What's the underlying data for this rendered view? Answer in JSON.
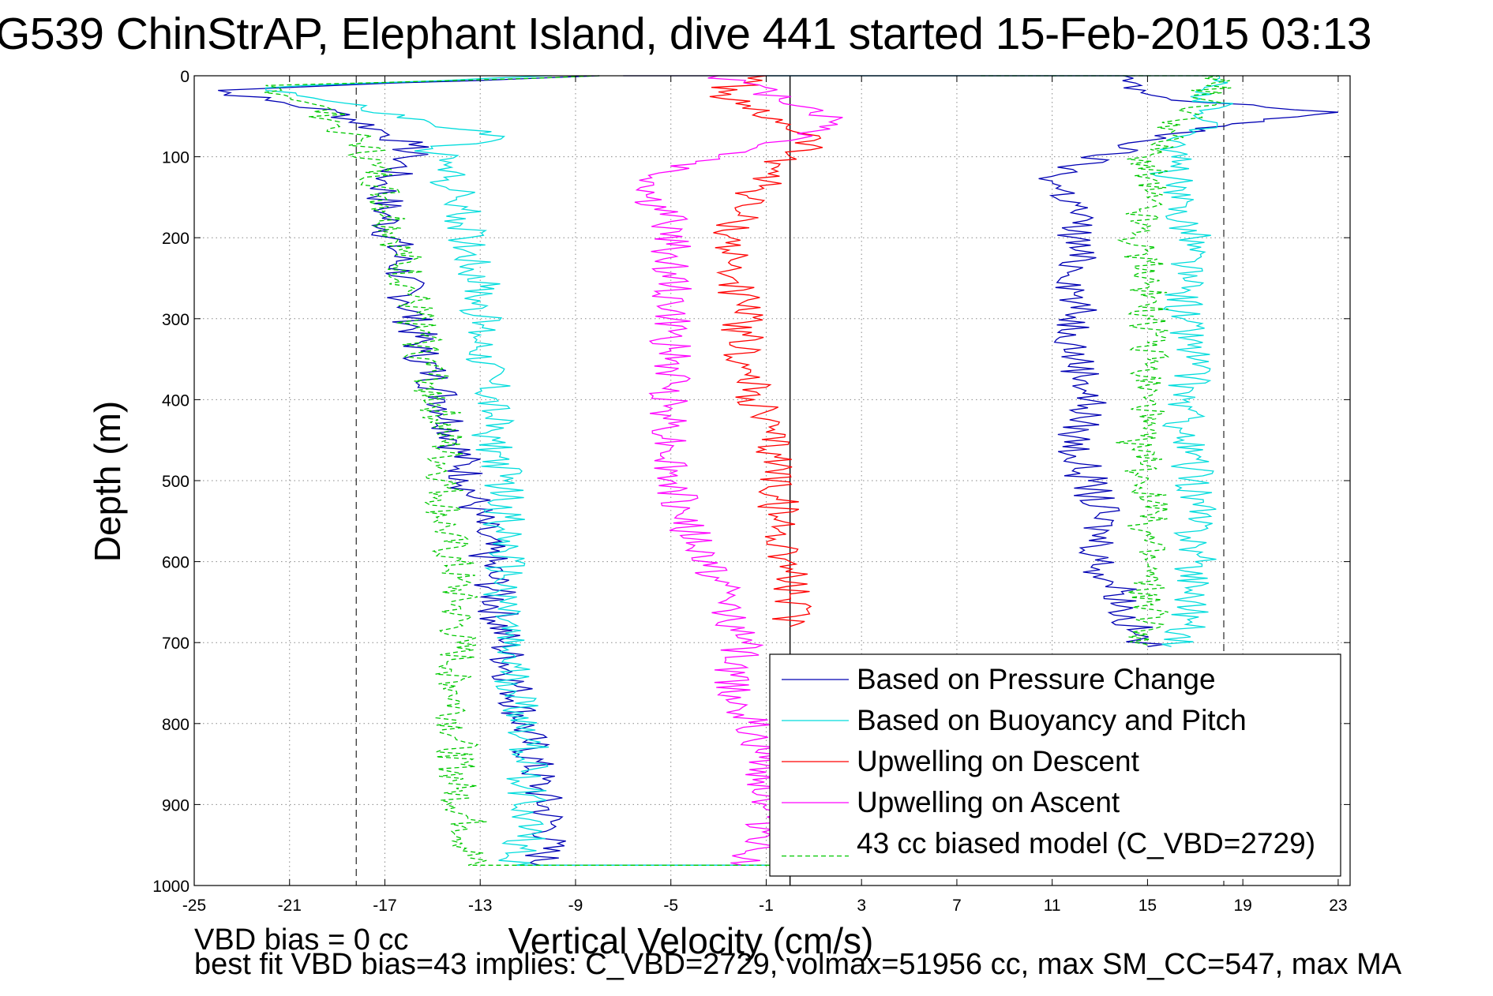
{
  "figure": {
    "title": "G539 ChinStrAP, Elephant Island, dive 441 started 15-Feb-2015 03:13",
    "footer_line1": "VBD bias = 0 cc",
    "footer_line2": "best fit VBD bias=43 implies: C_VBD=2729, volmax=51956 cc, max SM_CC=547, max MA"
  },
  "chart_data": {
    "type": "line",
    "title": "G539 ChinStrAP, Elephant Island, dive 441 started 15-Feb-2015 03:13",
    "xlabel": "Vertical Velocity (cm/s)",
    "ylabel": "Depth (m)",
    "xlim": [
      -25,
      23.5
    ],
    "ylim": [
      1000,
      0
    ],
    "y_reversed": true,
    "grid": true,
    "grid_style": "dotted",
    "x_ticks": [
      -25,
      -21,
      -17,
      -13,
      -9,
      -5,
      -1,
      3,
      7,
      11,
      15,
      19,
      23
    ],
    "y_ticks": [
      0,
      100,
      200,
      300,
      400,
      500,
      600,
      700,
      800,
      900,
      1000
    ],
    "legend_position": "bottom-right",
    "reference_lines": [
      {
        "orientation": "vertical",
        "x": -18.2,
        "style": "dashed",
        "color": "#444444"
      },
      {
        "orientation": "vertical",
        "x": 18.2,
        "style": "dashed",
        "color": "#444444"
      },
      {
        "orientation": "vertical",
        "x": 0,
        "style": "solid",
        "color": "#000000"
      }
    ],
    "series": [
      {
        "name": "Based on Pressure Change",
        "color": "#0000b4",
        "style": "solid",
        "descent": [
          [
            -8,
            0
          ],
          [
            -24,
            18
          ],
          [
            -22,
            30
          ],
          [
            -19,
            45
          ],
          [
            -17,
            70
          ],
          [
            -16,
            85
          ],
          [
            -16,
            100
          ],
          [
            -17,
            130
          ],
          [
            -17,
            170
          ],
          [
            -16.5,
            220
          ],
          [
            -16,
            280
          ],
          [
            -15.5,
            340
          ],
          [
            -15,
            370
          ],
          [
            -14.5,
            400
          ],
          [
            -14,
            450
          ],
          [
            -13.5,
            500
          ],
          [
            -13,
            560
          ],
          [
            -12.5,
            620
          ],
          [
            -12,
            700
          ],
          [
            -11.5,
            760
          ],
          [
            -11,
            820
          ],
          [
            -10.5,
            880
          ],
          [
            -10,
            930
          ],
          [
            -10.5,
            975
          ],
          [
            0,
            975
          ]
        ],
        "ascent": [
          [
            -7,
            0
          ],
          [
            14,
            0
          ],
          [
            14,
            15
          ],
          [
            16,
            30
          ],
          [
            23,
            45
          ],
          [
            17,
            65
          ],
          [
            15,
            80
          ],
          [
            12,
            110
          ],
          [
            11,
            130
          ],
          [
            12,
            160
          ],
          [
            12,
            200
          ],
          [
            12,
            240
          ],
          [
            12,
            280
          ],
          [
            12,
            320
          ],
          [
            12,
            350
          ],
          [
            12.5,
            380
          ],
          [
            12.5,
            410
          ],
          [
            12,
            440
          ],
          [
            12,
            470
          ],
          [
            12.5,
            500
          ],
          [
            13,
            540
          ],
          [
            13,
            580
          ],
          [
            13,
            610
          ],
          [
            14,
            640
          ],
          [
            14,
            660
          ],
          [
            14.5,
            690
          ],
          [
            15,
            705
          ]
        ]
      },
      {
        "name": "Based on Buoyancy and Pitch",
        "color": "#00dcdc",
        "style": "solid",
        "descent": [
          [
            -10,
            0
          ],
          [
            -22,
            15
          ],
          [
            -18,
            40
          ],
          [
            -15,
            60
          ],
          [
            -12,
            75
          ],
          [
            -15,
            90
          ],
          [
            -14.5,
            110
          ],
          [
            -14,
            150
          ],
          [
            -13.5,
            200
          ],
          [
            -13,
            260
          ],
          [
            -13,
            320
          ],
          [
            -12.5,
            380
          ],
          [
            -12.5,
            420
          ],
          [
            -12.5,
            450
          ],
          [
            -12,
            500
          ],
          [
            -12,
            560
          ],
          [
            -12,
            620
          ],
          [
            -12,
            700
          ],
          [
            -11.5,
            760
          ],
          [
            -11,
            820
          ],
          [
            -11,
            880
          ],
          [
            -11,
            930
          ],
          [
            -11.5,
            975
          ],
          [
            0,
            975
          ]
        ],
        "ascent": [
          [
            -1,
            0
          ],
          [
            18,
            0
          ],
          [
            17,
            20
          ],
          [
            18,
            40
          ],
          [
            17,
            70
          ],
          [
            16,
            100
          ],
          [
            16,
            150
          ],
          [
            17,
            200
          ],
          [
            16.5,
            250
          ],
          [
            16.5,
            300
          ],
          [
            17,
            350
          ],
          [
            16.5,
            400
          ],
          [
            16.5,
            450
          ],
          [
            17,
            500
          ],
          [
            17,
            550
          ],
          [
            17,
            600
          ],
          [
            17,
            650
          ],
          [
            16.5,
            690
          ],
          [
            16,
            705
          ]
        ]
      },
      {
        "name": "Upwelling on Descent",
        "color": "#ff0000",
        "style": "solid",
        "descent": [
          [
            -1,
            0
          ],
          [
            -3,
            20
          ],
          [
            -2,
            40
          ],
          [
            0,
            60
          ],
          [
            1,
            80
          ],
          [
            0,
            100
          ],
          [
            -1,
            130
          ],
          [
            -2,
            160
          ],
          [
            -2.5,
            200
          ],
          [
            -2.5,
            240
          ],
          [
            -2,
            280
          ],
          [
            -2,
            320
          ],
          [
            -2,
            360
          ],
          [
            -1.5,
            400
          ],
          [
            -1,
            440
          ],
          [
            -0.5,
            480
          ],
          [
            -0.5,
            520
          ],
          [
            -0.5,
            560
          ],
          [
            0,
            600
          ],
          [
            0,
            640
          ],
          [
            0,
            680
          ]
        ]
      },
      {
        "name": "Upwelling on Ascent",
        "color": "#ff00ff",
        "style": "solid",
        "descent": [
          [
            -3,
            0
          ],
          [
            -1,
            20
          ],
          [
            1,
            40
          ],
          [
            2,
            60
          ],
          [
            0,
            80
          ],
          [
            -3,
            100
          ],
          [
            -5.5,
            120
          ],
          [
            -6,
            150
          ],
          [
            -5,
            180
          ],
          [
            -5,
            220
          ],
          [
            -5,
            260
          ],
          [
            -5,
            300
          ],
          [
            -5,
            340
          ],
          [
            -5,
            380
          ],
          [
            -5,
            420
          ],
          [
            -5,
            460
          ],
          [
            -5,
            500
          ],
          [
            -4.5,
            540
          ],
          [
            -4,
            580
          ],
          [
            -3,
            620
          ],
          [
            -2.5,
            660
          ],
          [
            -2,
            700
          ],
          [
            -2.5,
            740
          ],
          [
            -2,
            780
          ],
          [
            -1.5,
            820
          ],
          [
            -1,
            860
          ],
          [
            -1,
            900
          ],
          [
            -1,
            940
          ],
          [
            -2,
            975
          ]
        ]
      },
      {
        "name": "43 cc biased model (C_VBD=2729)",
        "color": "#00c800",
        "style": "dashed",
        "descent": [
          [
            -8,
            0
          ],
          [
            -22,
            12
          ],
          [
            -20,
            35
          ],
          [
            -19,
            60
          ],
          [
            -18,
            80
          ],
          [
            -17.5,
            110
          ],
          [
            -17,
            150
          ],
          [
            -16.5,
            200
          ],
          [
            -16,
            260
          ],
          [
            -15.5,
            320
          ],
          [
            -15,
            380
          ],
          [
            -14.5,
            440
          ],
          [
            -14.5,
            500
          ],
          [
            -14.5,
            560
          ],
          [
            -14,
            620
          ],
          [
            -14,
            700
          ],
          [
            -14,
            760
          ],
          [
            -14,
            820
          ],
          [
            -14,
            880
          ],
          [
            -13.5,
            930
          ],
          [
            -13.5,
            975
          ],
          [
            0,
            975
          ]
        ],
        "ascent": [
          [
            8,
            0
          ],
          [
            18,
            0
          ],
          [
            17.5,
            30
          ],
          [
            16,
            70
          ],
          [
            15,
            100
          ],
          [
            15,
            150
          ],
          [
            14.5,
            200
          ],
          [
            15,
            250
          ],
          [
            15,
            300
          ],
          [
            15,
            350
          ],
          [
            15,
            400
          ],
          [
            14.5,
            450
          ],
          [
            15,
            500
          ],
          [
            15,
            550
          ],
          [
            15,
            600
          ],
          [
            15,
            650
          ],
          [
            15,
            690
          ],
          [
            15,
            705
          ]
        ]
      }
    ]
  }
}
